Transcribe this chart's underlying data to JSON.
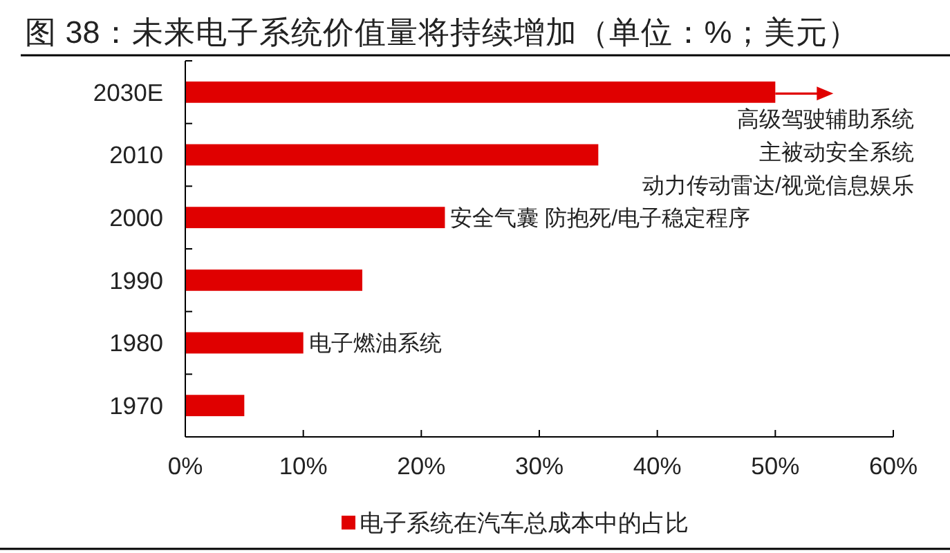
{
  "chart_data": {
    "type": "bar",
    "orientation": "horizontal",
    "title": "图 38：未来电子系统价值量将持续增加（单位：%；美元）",
    "categories": [
      "2030E",
      "2010",
      "2000",
      "1990",
      "1980",
      "1970"
    ],
    "series": [
      {
        "name": "电子系统在汽车总成本中的占比",
        "color": "#e00000",
        "values": [
          50,
          35,
          22,
          15,
          10,
          5
        ]
      }
    ],
    "xlim": [
      0,
      60
    ],
    "xticks": [
      {
        "value": 0,
        "label": "0%"
      },
      {
        "value": 10,
        "label": "10%"
      },
      {
        "value": 20,
        "label": "20%"
      },
      {
        "value": 30,
        "label": "30%"
      },
      {
        "value": 40,
        "label": "40%"
      },
      {
        "value": 50,
        "label": "50%"
      },
      {
        "value": 60,
        "label": "60%"
      }
    ],
    "legend": "bottom",
    "annotations": [
      "高级驾驶辅助系统",
      "主被动安全系统",
      "动力传动雷达/视觉信息娱乐",
      {
        "text": "安全气囊 防抱死/电子稳定程序",
        "x": 22,
        "y": "2000"
      },
      {
        "text": "电子燃油系统",
        "x": 10,
        "y": "1980"
      }
    ]
  }
}
